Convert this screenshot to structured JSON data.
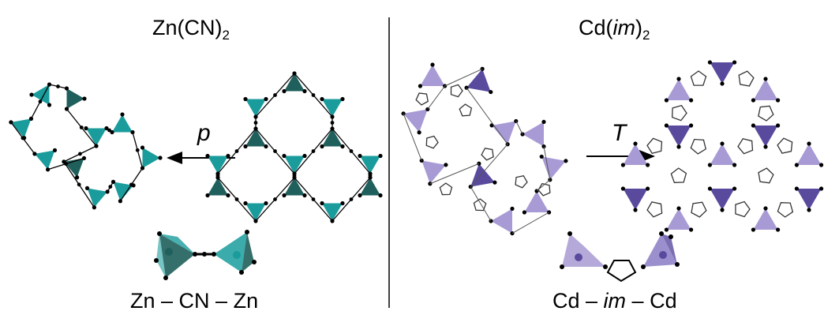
{
  "left_panel": {
    "title_main": "Zn(CN)",
    "title_sub": "2",
    "arrow_label": "p",
    "caption": {
      "metal1": "Zn",
      "sep1": " – ",
      "linker": "CN",
      "sep2": " – ",
      "metal2": "Zn"
    },
    "colors": {
      "light": "#1a9c9c",
      "dark": "#1f5f5c"
    }
  },
  "right_panel": {
    "title_main": "Cd(",
    "title_ligand": "im",
    "title_close": ")",
    "title_sub": "2",
    "arrow_label": "T",
    "caption": {
      "metal1": "Cd",
      "sep1": " – ",
      "linker": "im",
      "sep2": " – ",
      "metal2": "Cd"
    },
    "colors": {
      "light": "#a89ad4",
      "dark": "#5a4a9e"
    }
  },
  "icons": {
    "divider": "vertical-line",
    "pressure_arrow": "left-arrow",
    "temperature_arrow": "right-arrow"
  }
}
